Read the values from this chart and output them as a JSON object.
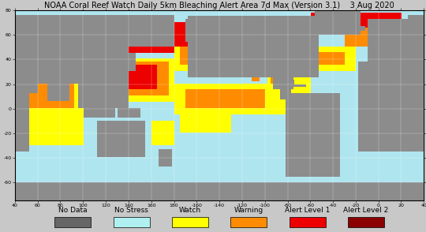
{
  "title": "NOAA Coral Reef Watch Daily 5km Bleaching Alert Area 7d Max (Version 3.1)    3 Aug 2020",
  "title_fontsize": 7.0,
  "title_color": "black",
  "ocean_color": [
    0.69,
    0.9,
    0.94
  ],
  "land_color": [
    0.55,
    0.55,
    0.55
  ],
  "background_fig": "#c8c8c8",
  "lon_min": 40,
  "lon_max": 400,
  "lat_min": -75,
  "lat_max": 80,
  "lon_ticks": [
    40,
    60,
    80,
    100,
    120,
    140,
    160,
    180,
    200,
    220,
    240,
    260,
    280,
    300,
    320,
    340,
    360,
    380,
    400
  ],
  "lon_tick_labels": [
    "40",
    "60",
    "80",
    "100",
    "120",
    "140",
    "160",
    "180",
    "-160",
    "-140",
    "-120",
    "-100",
    "-80",
    "-60",
    "-40",
    "-20",
    "0",
    "20",
    "40"
  ],
  "lat_ticks": [
    -60,
    -40,
    -20,
    0,
    20,
    40,
    60,
    80
  ],
  "lat_tick_labels": [
    "-60",
    "-40",
    "-20",
    "0",
    "20",
    "40",
    "60",
    "80"
  ],
  "legend_items": [
    {
      "label": "No Data",
      "color": "#666666"
    },
    {
      "label": "No Stress",
      "color": "#b0f0f0"
    },
    {
      "label": "Watch",
      "color": "#ffff00"
    },
    {
      "label": "Warning",
      "color": "#ff8c00"
    },
    {
      "label": "Alert Level 1",
      "color": "#ee0000"
    },
    {
      "label": "Alert Level 2",
      "color": "#8b0000"
    }
  ],
  "legend_fontsize": 6.5,
  "alert_colors": {
    "land": [
      0.55,
      0.55,
      0.55,
      1.0
    ],
    "ocean": [
      0.69,
      0.9,
      0.94,
      1.0
    ],
    "watch": [
      1.0,
      1.0,
      0.0,
      1.0
    ],
    "warn": [
      1.0,
      0.55,
      0.0,
      1.0
    ],
    "alert1": [
      0.93,
      0.0,
      0.0,
      1.0
    ],
    "alert2": [
      0.55,
      0.0,
      0.0,
      1.0
    ]
  }
}
